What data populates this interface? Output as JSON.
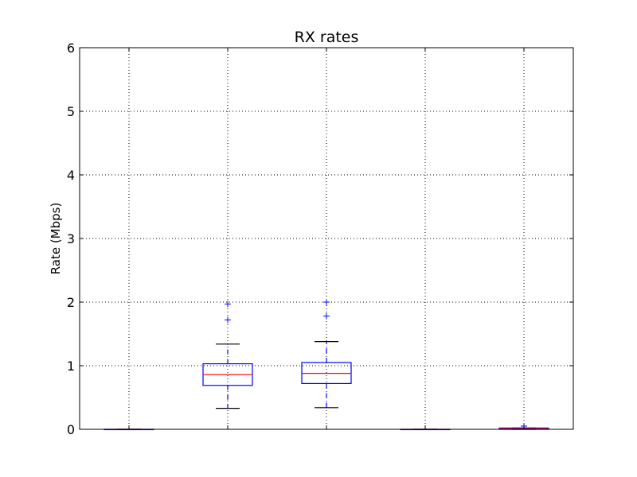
{
  "chart_data": {
    "type": "box",
    "title": "RX rates",
    "xlabel": "",
    "ylabel": "Rate (Mbps)",
    "ylim": [
      0,
      6
    ],
    "yticks": [
      0,
      1,
      2,
      3,
      4,
      5,
      6
    ],
    "grid": true,
    "colors": {
      "box": "#0000ff",
      "median": "#ff0000",
      "cap": "#000000",
      "outlier": "#0000ff",
      "grid": "#000000"
    },
    "boxes": [
      {
        "position": 1,
        "whisker_low": 0.0,
        "q1": 0.0,
        "median": 0.0,
        "q3": 0.0,
        "whisker_high": 0.0,
        "outliers": []
      },
      {
        "position": 2,
        "whisker_low": 0.33,
        "q1": 0.69,
        "median": 0.86,
        "q3": 1.03,
        "whisker_high": 1.34,
        "outliers": [
          1.72,
          1.97
        ]
      },
      {
        "position": 3,
        "whisker_low": 0.34,
        "q1": 0.72,
        "median": 0.88,
        "q3": 1.05,
        "whisker_high": 1.38,
        "outliers": [
          1.78,
          2.0
        ]
      },
      {
        "position": 4,
        "whisker_low": 0.0,
        "q1": 0.0,
        "median": 0.0,
        "q3": 0.0,
        "whisker_high": 0.0,
        "outliers": []
      },
      {
        "position": 5,
        "whisker_low": 0.0,
        "q1": 0.0,
        "median": 0.01,
        "q3": 0.02,
        "whisker_high": 0.02,
        "outliers": [
          0.05
        ]
      }
    ]
  }
}
